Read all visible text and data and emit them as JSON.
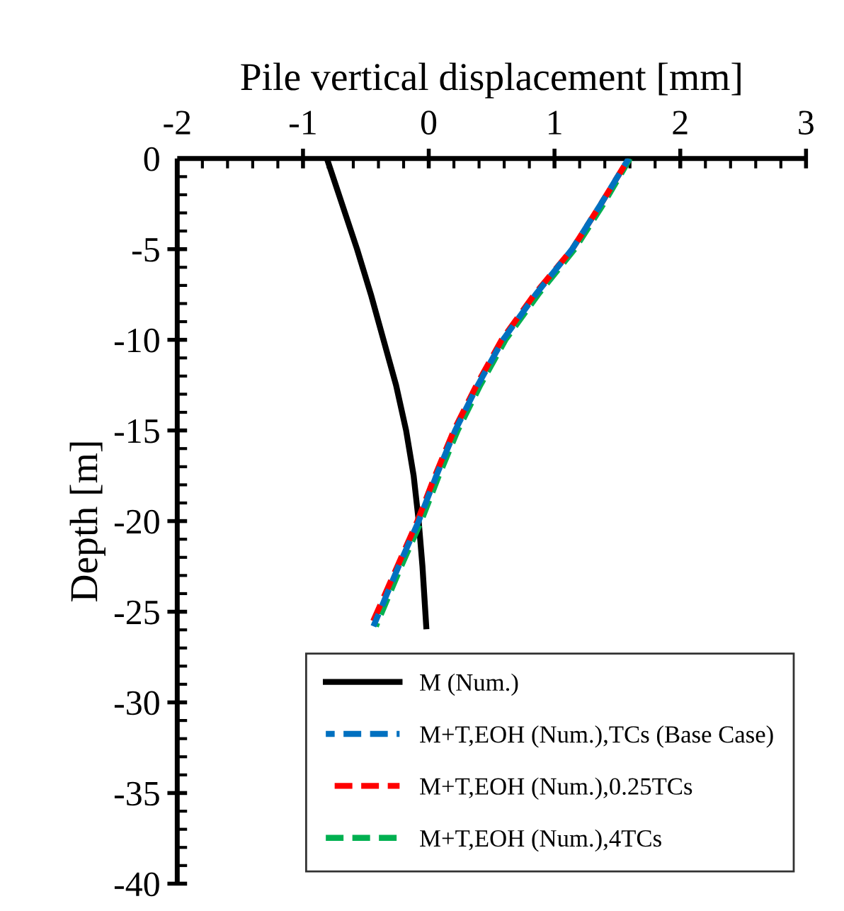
{
  "chart_data": {
    "type": "line",
    "xlabel": "Pile vertical displacement [mm]",
    "ylabel": "Depth [m]",
    "xlim": [
      -2,
      3
    ],
    "xticks": [
      -2,
      -1,
      0,
      1,
      2,
      3
    ],
    "ylim": [
      -40,
      0
    ],
    "yticks": [
      -40,
      -35,
      -30,
      -25,
      -20,
      -15,
      -10,
      -5,
      0
    ],
    "grid": false,
    "legend": "bottom",
    "marker": "none",
    "series": [
      {
        "name": "M (Num.)",
        "color": "#000000",
        "line_style": "solid",
        "x": [
          -0.81,
          -0.69,
          -0.57,
          -0.46,
          -0.36,
          -0.26,
          -0.18,
          -0.12,
          -0.08,
          -0.05,
          -0.02
        ],
        "values": [
          0,
          -2.5,
          -5,
          -7.5,
          -10,
          -12.5,
          -15,
          -17.5,
          -20,
          -22.5,
          -25.8
        ]
      },
      {
        "name": "M+T,EOH (Num.),TCs (Base Case)",
        "color": "#0070c0",
        "line_style": "dashed",
        "x": [
          1.59,
          1.37,
          1.14,
          0.85,
          0.59,
          0.39,
          0.21,
          0.06,
          -0.08,
          -0.24,
          -0.44
        ],
        "values": [
          0,
          -2.5,
          -5,
          -7.5,
          -10,
          -12.5,
          -15,
          -17.5,
          -20,
          -22.5,
          -25.8
        ]
      },
      {
        "name": "M+T,EOH (Num.),0.25TCs",
        "color": "#ff0000",
        "line_style": "dashed",
        "x": [
          1.59,
          1.37,
          1.14,
          0.84,
          0.58,
          0.38,
          0.2,
          0.05,
          -0.09,
          -0.25,
          -0.46
        ],
        "values": [
          0,
          -2.5,
          -5,
          -7.5,
          -10,
          -12.5,
          -15,
          -17.5,
          -20,
          -22.5,
          -25.8
        ]
      },
      {
        "name": "M+T,EOH (Num.),4TCs",
        "color": "#00b050",
        "line_style": "dashed",
        "x": [
          1.6,
          1.39,
          1.16,
          0.87,
          0.61,
          0.41,
          0.23,
          0.08,
          -0.06,
          -0.22,
          -0.42
        ],
        "values": [
          0,
          -2.5,
          -5,
          -7.5,
          -10,
          -12.5,
          -15,
          -17.5,
          -20,
          -22.5,
          -25.8
        ]
      }
    ]
  }
}
